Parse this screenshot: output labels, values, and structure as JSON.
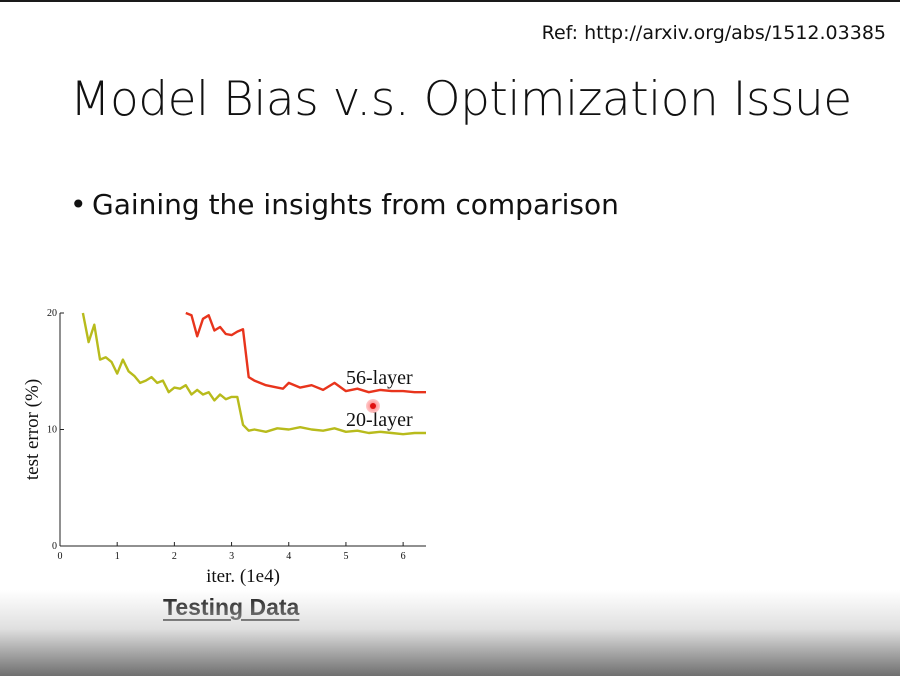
{
  "slide": {
    "ref": "Ref: http://arxiv.org/abs/1512.03385",
    "title": "Model Bias v.s. Optimization Issue",
    "bullet": "Gaining the insights from comparison",
    "caption": "Testing Data"
  },
  "colors": {
    "series_56": "#e8341c",
    "series_20": "#b8bb1c"
  },
  "chart_data": {
    "type": "line",
    "title": "",
    "xlabel": "iter. (1e4)",
    "ylabel": "test error (%)",
    "xlim": [
      0,
      6.4
    ],
    "ylim": [
      0,
      20
    ],
    "xticks": [
      0,
      1,
      2,
      3,
      4,
      5,
      6
    ],
    "yticks": [
      0,
      10,
      20
    ],
    "series": [
      {
        "name": "56-layer",
        "x": [
          2.2,
          2.3,
          2.4,
          2.5,
          2.6,
          2.7,
          2.8,
          2.9,
          3.0,
          3.1,
          3.2,
          3.3,
          3.4,
          3.6,
          3.8,
          3.9,
          4.0,
          4.2,
          4.4,
          4.6,
          4.8,
          5.0,
          5.2,
          5.4,
          5.6,
          5.8,
          6.0,
          6.2,
          6.4
        ],
        "y": [
          20,
          19.8,
          18.0,
          19.5,
          19.8,
          18.5,
          18.8,
          18.2,
          18.1,
          18.4,
          18.6,
          14.5,
          14.2,
          13.8,
          13.6,
          13.5,
          14.0,
          13.6,
          13.8,
          13.4,
          14.0,
          13.3,
          13.5,
          13.2,
          13.4,
          13.3,
          13.3,
          13.2,
          13.2
        ]
      },
      {
        "name": "20-layer",
        "x": [
          0.4,
          0.5,
          0.6,
          0.7,
          0.8,
          0.9,
          1.0,
          1.1,
          1.2,
          1.3,
          1.4,
          1.5,
          1.6,
          1.7,
          1.8,
          1.9,
          2.0,
          2.1,
          2.2,
          2.3,
          2.4,
          2.5,
          2.6,
          2.7,
          2.8,
          2.9,
          3.0,
          3.1,
          3.2,
          3.3,
          3.4,
          3.6,
          3.8,
          4.0,
          4.2,
          4.4,
          4.6,
          4.8,
          5.0,
          5.2,
          5.4,
          5.6,
          5.8,
          6.0,
          6.2,
          6.4
        ],
        "y": [
          20,
          17.5,
          19,
          16,
          16.2,
          15.8,
          14.8,
          16,
          15,
          14.6,
          14,
          14.2,
          14.5,
          14,
          14.2,
          13.2,
          13.6,
          13.5,
          13.8,
          13,
          13.4,
          13,
          13.2,
          12.5,
          13,
          12.6,
          12.8,
          12.8,
          10.4,
          9.9,
          10.0,
          9.8,
          10.1,
          10.0,
          10.2,
          10.0,
          9.9,
          10.1,
          9.8,
          9.9,
          9.7,
          9.8,
          9.7,
          9.6,
          9.7,
          9.7
        ]
      }
    ],
    "legend": "inline labels near line ends"
  }
}
